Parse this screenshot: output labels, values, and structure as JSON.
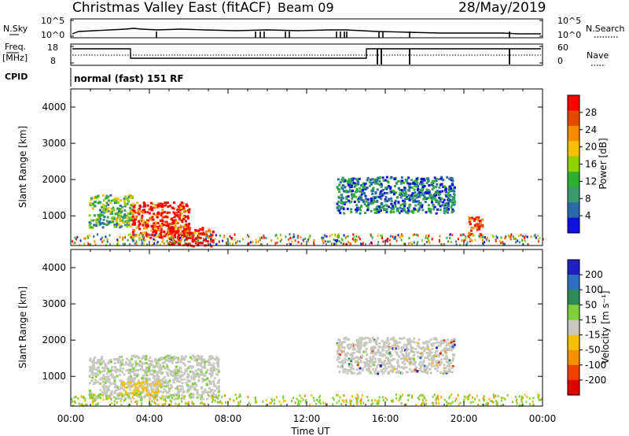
{
  "header": {
    "station": "Christmas Valley East (fitACF)",
    "beam": "Beam 09",
    "date": "28/May/2019"
  },
  "panels": {
    "nsky": {
      "left_label": "N.Sky",
      "right_label": "N.Search",
      "left_ticks": [
        "10^5",
        "10^0"
      ],
      "right_ticks": [
        "10^5",
        "10^0"
      ]
    },
    "freq": {
      "left_label": "Freq.",
      "left_unit": "[MHz]",
      "right_label": "Nave",
      "left_ticks": [
        "18",
        "8"
      ],
      "right_ticks": [
        "60",
        "0"
      ]
    },
    "cpid": {
      "label": "CPID",
      "value": "normal (fast) 151 RF"
    }
  },
  "chart_data": [
    {
      "type": "heatmap",
      "name": "power",
      "ylabel": "Slant Range [km]",
      "xlabel": "",
      "ylim": [
        180,
        4500
      ],
      "yticks": [
        "1000",
        "2000",
        "3000",
        "4000"
      ],
      "colorbar": {
        "label": "Power [dB]",
        "ticks": [
          "28",
          "24",
          "20",
          "16",
          "12",
          "8",
          "4"
        ],
        "colors": [
          "#ff0000",
          "#e64a00",
          "#f58a00",
          "#f5c000",
          "#8ed000",
          "#2fb030",
          "#3a9a6e",
          "#2a6aa8",
          "#1010e0"
        ]
      },
      "features": [
        {
          "x_hours": [
            0.9,
            3.1
          ],
          "range_km": [
            700,
            1600
          ],
          "power_db": "8-20"
        },
        {
          "x_hours": [
            3.1,
            6.0
          ],
          "range_km": [
            400,
            1400
          ],
          "power_db": "20-30"
        },
        {
          "x_hours": [
            4.8,
            7.2
          ],
          "range_km": [
            180,
            700
          ],
          "power_db": "24-30"
        },
        {
          "x_hours": [
            13.5,
            19.5
          ],
          "range_km": [
            1100,
            2100
          ],
          "power_db": "4-12"
        },
        {
          "x_hours": [
            20.2,
            20.9
          ],
          "range_km": [
            400,
            1000
          ],
          "power_db": "20-30"
        }
      ]
    },
    {
      "type": "heatmap",
      "name": "velocity",
      "ylabel": "Slant Range [km]",
      "xlabel": "Time UT",
      "ylim": [
        180,
        4500
      ],
      "yticks": [
        "1000",
        "2000",
        "3000",
        "4000"
      ],
      "xticks": [
        "00:00",
        "04:00",
        "08:00",
        "12:00",
        "16:00",
        "20:00",
        "00:00"
      ],
      "colorbar": {
        "label": "Velocity [m s⁻¹]",
        "ticks": [
          "200",
          "100",
          "50",
          "15",
          "-15",
          "-50",
          "-100",
          "-200"
        ],
        "colors": [
          "#2020c0",
          "#2f6fc0",
          "#2e8b57",
          "#7fd03a",
          "#c8c8c0",
          "#f5c000",
          "#f59000",
          "#f04000",
          "#e00000"
        ]
      },
      "features": [
        {
          "x_hours": [
            0.9,
            7.5
          ],
          "range_km": [
            400,
            1600
          ],
          "velocity_ms": "-15 to 15"
        },
        {
          "x_hours": [
            2.5,
            4.5
          ],
          "range_km": [
            500,
            900
          ],
          "velocity_ms": "-50 to -15"
        },
        {
          "x_hours": [
            13.5,
            19.5
          ],
          "range_km": [
            1100,
            2100
          ],
          "velocity_ms": "-15 to 15"
        }
      ]
    }
  ]
}
